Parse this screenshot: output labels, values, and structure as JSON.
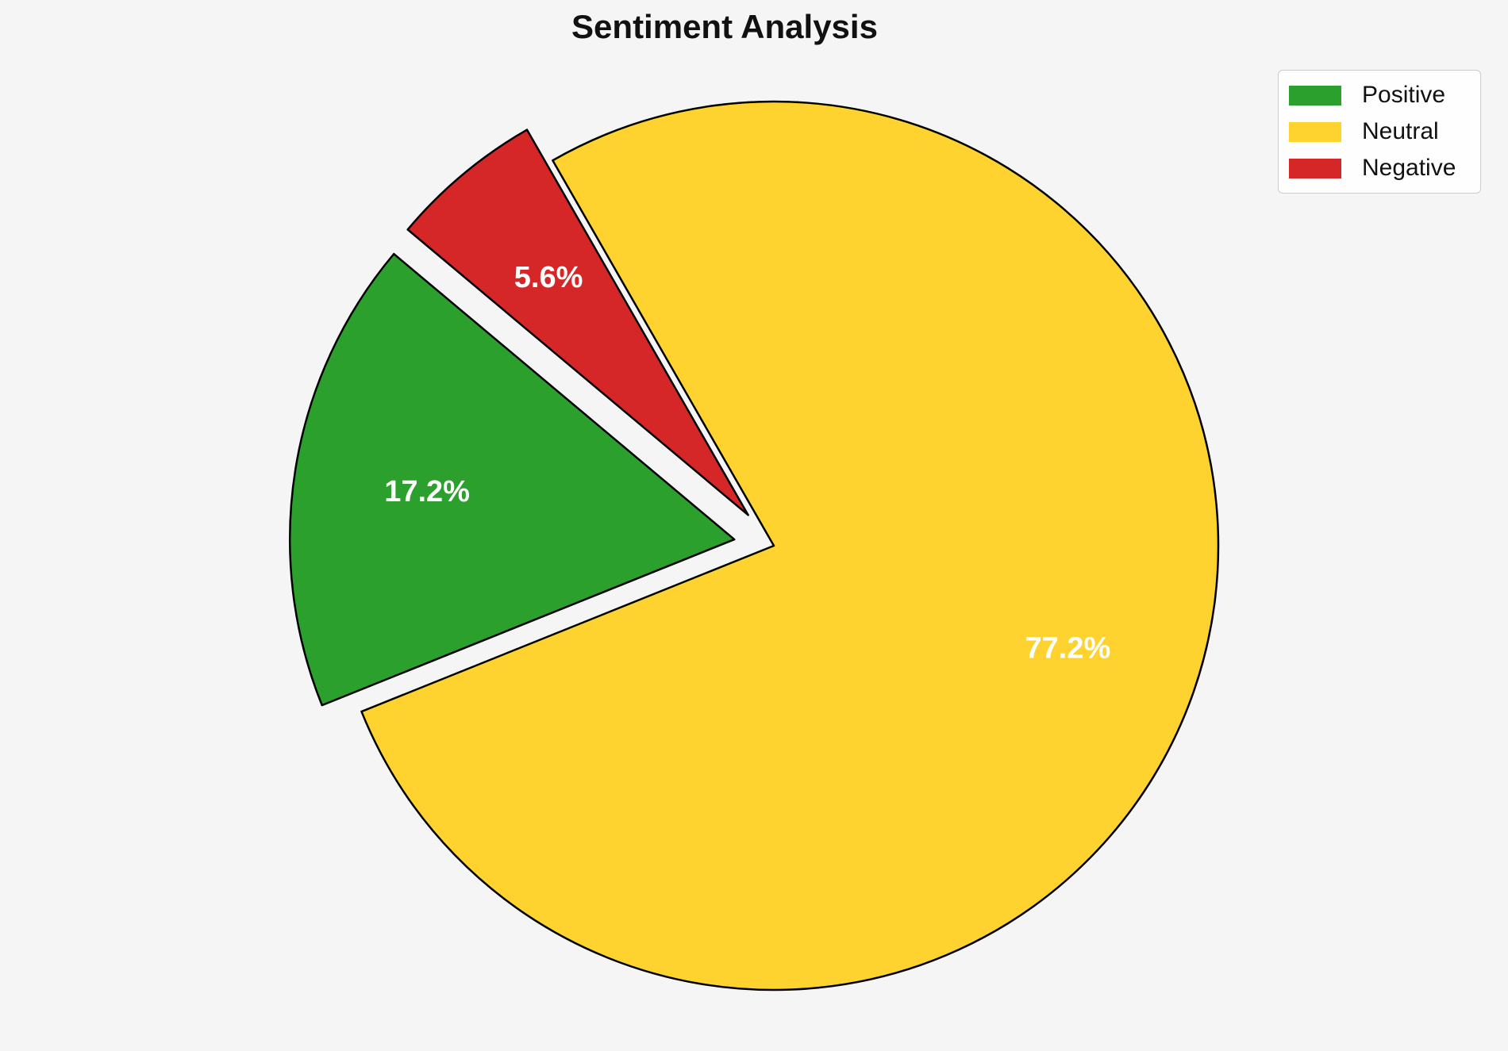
{
  "page": {
    "background_color": "#f5f5f6"
  },
  "chart_data": {
    "type": "pie",
    "title": "Sentiment Analysis",
    "labels": [
      "Positive",
      "Neutral",
      "Negative"
    ],
    "values": [
      17.2,
      77.2,
      5.6
    ],
    "percent_labels": [
      "17.2%",
      "77.2%",
      "5.6%"
    ],
    "colors": [
      "#2ca02c",
      "#fed32f",
      "#d62728"
    ],
    "explode": [
      0.09,
      0,
      0.09
    ],
    "start_angle_deg": 140,
    "counterclock": true,
    "slice_edge_color": "#000000",
    "pct_label_color": "#ffffff",
    "legend": {
      "position": "upper-right",
      "entries": [
        "Positive",
        "Neutral",
        "Negative"
      ]
    }
  }
}
